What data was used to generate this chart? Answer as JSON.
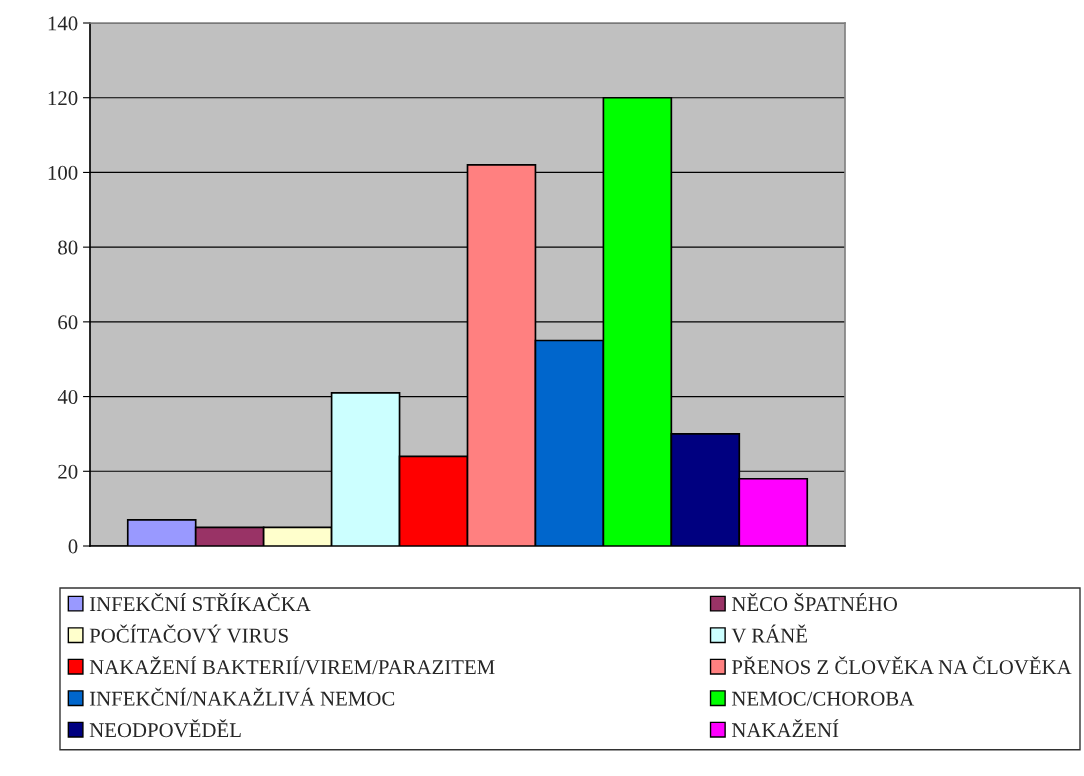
{
  "chart_data": {
    "type": "bar",
    "categories": [
      null
    ],
    "series": [
      {
        "name": "INFEKČNÍ STŘÍKAČKA",
        "color": "#9999ff",
        "values": [
          7
        ]
      },
      {
        "name": "NĚCO ŠPATNÉHO",
        "color": "#993366",
        "values": [
          5
        ]
      },
      {
        "name": "POČÍTAČOVÝ VIRUS",
        "color": "#ffffcc",
        "values": [
          5
        ]
      },
      {
        "name": "V RÁNĚ",
        "color": "#ccffff",
        "values": [
          41
        ]
      },
      {
        "name": "NAKAŽENÍ BAKTERIÍ/VIREM/PARAZITEM",
        "color": "#ff0000",
        "values": [
          24
        ]
      },
      {
        "name": "PŘENOS Z ČLOVĚKA NA ČLOVĚKA",
        "color": "#ff8080",
        "values": [
          102
        ]
      },
      {
        "name": "INFEKČNÍ/NAKAŽLIVÁ NEMOC",
        "color": "#0066cc",
        "values": [
          55
        ]
      },
      {
        "name": "NEMOC/CHOROBA",
        "color": "#00ff00",
        "values": [
          120
        ]
      },
      {
        "name": "NEODPOVĚDĚL",
        "color": "#000080",
        "values": [
          30
        ]
      },
      {
        "name": "NAKAŽENÍ",
        "color": "#ff00ff",
        "values": [
          18
        ]
      }
    ],
    "ylim": [
      0,
      140
    ],
    "yticks": [
      0,
      20,
      40,
      60,
      80,
      100,
      120,
      140
    ],
    "grid": "y",
    "legend": "bottom",
    "tick_labels": "y"
  }
}
